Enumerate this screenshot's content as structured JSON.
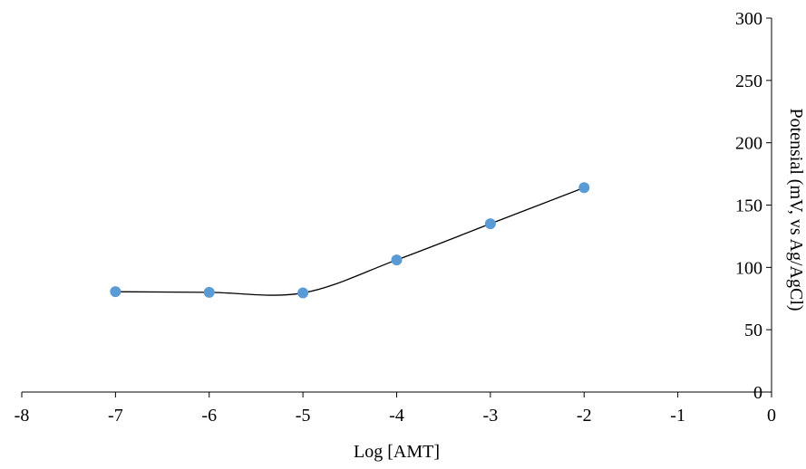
{
  "chart_data": {
    "type": "line",
    "title": "",
    "xlabel": "Log [AMT]",
    "ylabel": "Potensial (mV, vs Ag/AgCl)",
    "xlim": [
      -8,
      0
    ],
    "ylim": [
      0,
      300
    ],
    "xticks": [
      -8,
      -7,
      -6,
      -5,
      -4,
      -3,
      -2,
      -1,
      0
    ],
    "yticks": [
      0,
      50,
      100,
      150,
      200,
      250,
      300
    ],
    "x": [
      -7,
      -6,
      -5,
      -4,
      -3,
      -2
    ],
    "y": [
      80.5,
      80,
      79.5,
      106,
      135,
      164
    ],
    "grid": false,
    "legend": "none",
    "marker_color": "#5b9bd5",
    "line_color": "#000000",
    "line_style": "smooth"
  }
}
